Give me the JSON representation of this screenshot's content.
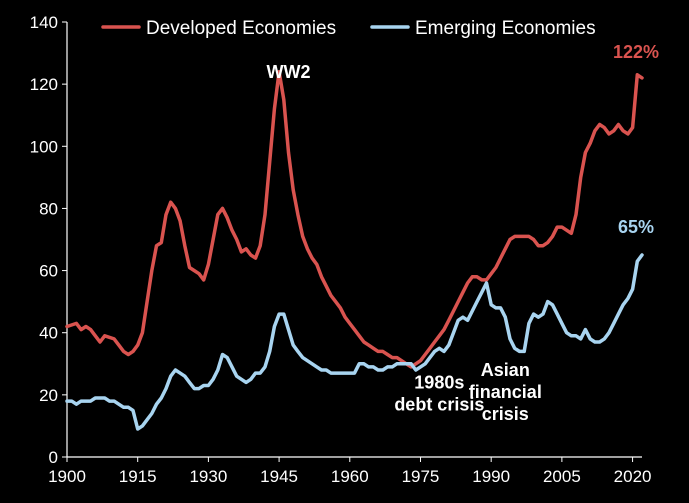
{
  "chart_data": {
    "type": "line",
    "title": "",
    "xlabel": "",
    "ylabel": "",
    "xlim": [
      1900,
      2022
    ],
    "ylim": [
      0,
      140
    ],
    "x_ticks": [
      1900,
      1915,
      1930,
      1945,
      1960,
      1975,
      1990,
      2005,
      2020
    ],
    "y_ticks": [
      0,
      20,
      40,
      60,
      80,
      100,
      120,
      140
    ],
    "x_tick_labels": [
      "1900",
      "1915",
      "1930",
      "1945",
      "1960",
      "1975",
      "1990",
      "2005",
      "2020"
    ],
    "y_tick_labels": [
      "0",
      "20",
      "40",
      "60",
      "80",
      "100",
      "120",
      "140"
    ],
    "grid": false,
    "legend_position": "top",
    "series": [
      {
        "name": "Developed Economies",
        "color": "#d9534f",
        "end_label": "122%",
        "points": [
          [
            1900,
            42
          ],
          [
            1902,
            43
          ],
          [
            1903,
            41
          ],
          [
            1904,
            42
          ],
          [
            1905,
            41
          ],
          [
            1906,
            39
          ],
          [
            1907,
            37
          ],
          [
            1908,
            39
          ],
          [
            1910,
            38
          ],
          [
            1911,
            36
          ],
          [
            1912,
            34
          ],
          [
            1913,
            33
          ],
          [
            1914,
            34
          ],
          [
            1915,
            36
          ],
          [
            1916,
            40
          ],
          [
            1917,
            50
          ],
          [
            1918,
            60
          ],
          [
            1919,
            68
          ],
          [
            1920,
            69
          ],
          [
            1921,
            78
          ],
          [
            1922,
            82
          ],
          [
            1923,
            80
          ],
          [
            1924,
            76
          ],
          [
            1925,
            68
          ],
          [
            1926,
            61
          ],
          [
            1927,
            60
          ],
          [
            1928,
            59
          ],
          [
            1929,
            57
          ],
          [
            1930,
            62
          ],
          [
            1931,
            70
          ],
          [
            1932,
            78
          ],
          [
            1933,
            80
          ],
          [
            1934,
            77
          ],
          [
            1935,
            73
          ],
          [
            1936,
            70
          ],
          [
            1937,
            66
          ],
          [
            1938,
            67
          ],
          [
            1939,
            65
          ],
          [
            1940,
            64
          ],
          [
            1941,
            68
          ],
          [
            1942,
            78
          ],
          [
            1943,
            95
          ],
          [
            1944,
            112
          ],
          [
            1945,
            124
          ],
          [
            1946,
            115
          ],
          [
            1947,
            98
          ],
          [
            1948,
            86
          ],
          [
            1949,
            78
          ],
          [
            1950,
            71
          ],
          [
            1951,
            67
          ],
          [
            1952,
            64
          ],
          [
            1953,
            62
          ],
          [
            1954,
            58
          ],
          [
            1955,
            55
          ],
          [
            1956,
            52
          ],
          [
            1957,
            50
          ],
          [
            1958,
            48
          ],
          [
            1959,
            45
          ],
          [
            1960,
            43
          ],
          [
            1961,
            41
          ],
          [
            1962,
            39
          ],
          [
            1963,
            37
          ],
          [
            1964,
            36
          ],
          [
            1965,
            35
          ],
          [
            1966,
            34
          ],
          [
            1967,
            34
          ],
          [
            1968,
            33
          ],
          [
            1969,
            32
          ],
          [
            1970,
            32
          ],
          [
            1971,
            31
          ],
          [
            1972,
            30
          ],
          [
            1973,
            29
          ],
          [
            1974,
            30
          ],
          [
            1975,
            31
          ],
          [
            1976,
            33
          ],
          [
            1977,
            35
          ],
          [
            1978,
            37
          ],
          [
            1979,
            39
          ],
          [
            1980,
            41
          ],
          [
            1981,
            44
          ],
          [
            1982,
            47
          ],
          [
            1983,
            50
          ],
          [
            1984,
            53
          ],
          [
            1985,
            56
          ],
          [
            1986,
            58
          ],
          [
            1987,
            58
          ],
          [
            1988,
            57
          ],
          [
            1989,
            57
          ],
          [
            1990,
            59
          ],
          [
            1991,
            61
          ],
          [
            1992,
            64
          ],
          [
            1993,
            67
          ],
          [
            1994,
            70
          ],
          [
            1995,
            71
          ],
          [
            1996,
            71
          ],
          [
            1997,
            71
          ],
          [
            1998,
            71
          ],
          [
            1999,
            70
          ],
          [
            2000,
            68
          ],
          [
            2001,
            68
          ],
          [
            2002,
            69
          ],
          [
            2003,
            71
          ],
          [
            2004,
            74
          ],
          [
            2005,
            74
          ],
          [
            2006,
            73
          ],
          [
            2007,
            72
          ],
          [
            2008,
            78
          ],
          [
            2009,
            90
          ],
          [
            2010,
            98
          ],
          [
            2011,
            101
          ],
          [
            2012,
            105
          ],
          [
            2013,
            107
          ],
          [
            2014,
            106
          ],
          [
            2015,
            104
          ],
          [
            2016,
            105
          ],
          [
            2017,
            107
          ],
          [
            2018,
            105
          ],
          [
            2019,
            104
          ],
          [
            2020,
            106
          ],
          [
            2021,
            123
          ],
          [
            2022,
            122
          ]
        ]
      },
      {
        "name": "Emerging Economies",
        "color": "#a8d4f0",
        "end_label": "65%",
        "points": [
          [
            1900,
            18
          ],
          [
            1901,
            18
          ],
          [
            1902,
            17
          ],
          [
            1903,
            18
          ],
          [
            1904,
            18
          ],
          [
            1905,
            18
          ],
          [
            1906,
            19
          ],
          [
            1907,
            19
          ],
          [
            1908,
            19
          ],
          [
            1909,
            18
          ],
          [
            1910,
            18
          ],
          [
            1911,
            17
          ],
          [
            1912,
            16
          ],
          [
            1913,
            16
          ],
          [
            1914,
            15
          ],
          [
            1915,
            9
          ],
          [
            1916,
            10
          ],
          [
            1917,
            12
          ],
          [
            1918,
            14
          ],
          [
            1919,
            17
          ],
          [
            1920,
            19
          ],
          [
            1921,
            22
          ],
          [
            1922,
            26
          ],
          [
            1923,
            28
          ],
          [
            1924,
            27
          ],
          [
            1925,
            26
          ],
          [
            1926,
            24
          ],
          [
            1927,
            22
          ],
          [
            1928,
            22
          ],
          [
            1929,
            23
          ],
          [
            1930,
            23
          ],
          [
            1931,
            25
          ],
          [
            1932,
            28
          ],
          [
            1933,
            33
          ],
          [
            1934,
            32
          ],
          [
            1935,
            29
          ],
          [
            1936,
            26
          ],
          [
            1937,
            25
          ],
          [
            1938,
            24
          ],
          [
            1939,
            25
          ],
          [
            1940,
            27
          ],
          [
            1941,
            27
          ],
          [
            1942,
            29
          ],
          [
            1943,
            34
          ],
          [
            1944,
            42
          ],
          [
            1945,
            46
          ],
          [
            1946,
            46
          ],
          [
            1947,
            41
          ],
          [
            1948,
            36
          ],
          [
            1949,
            34
          ],
          [
            1950,
            32
          ],
          [
            1951,
            31
          ],
          [
            1952,
            30
          ],
          [
            1953,
            29
          ],
          [
            1954,
            28
          ],
          [
            1955,
            28
          ],
          [
            1956,
            27
          ],
          [
            1957,
            27
          ],
          [
            1958,
            27
          ],
          [
            1959,
            27
          ],
          [
            1960,
            27
          ],
          [
            1961,
            27
          ],
          [
            1962,
            30
          ],
          [
            1963,
            30
          ],
          [
            1964,
            29
          ],
          [
            1965,
            29
          ],
          [
            1966,
            28
          ],
          [
            1967,
            28
          ],
          [
            1968,
            29
          ],
          [
            1969,
            29
          ],
          [
            1970,
            30
          ],
          [
            1971,
            30
          ],
          [
            1972,
            30
          ],
          [
            1973,
            30
          ],
          [
            1974,
            28
          ],
          [
            1975,
            29
          ],
          [
            1976,
            30
          ],
          [
            1977,
            32
          ],
          [
            1978,
            34
          ],
          [
            1979,
            35
          ],
          [
            1980,
            34
          ],
          [
            1981,
            36
          ],
          [
            1982,
            40
          ],
          [
            1983,
            44
          ],
          [
            1984,
            45
          ],
          [
            1985,
            44
          ],
          [
            1986,
            47
          ],
          [
            1987,
            50
          ],
          [
            1988,
            53
          ],
          [
            1989,
            56
          ],
          [
            1990,
            49
          ],
          [
            1991,
            48
          ],
          [
            1992,
            48
          ],
          [
            1993,
            45
          ],
          [
            1994,
            38
          ],
          [
            1995,
            35
          ],
          [
            1996,
            34
          ],
          [
            1997,
            34
          ],
          [
            1998,
            43
          ],
          [
            1999,
            46
          ],
          [
            2000,
            45
          ],
          [
            2001,
            46
          ],
          [
            2002,
            50
          ],
          [
            2003,
            49
          ],
          [
            2004,
            46
          ],
          [
            2005,
            43
          ],
          [
            2006,
            40
          ],
          [
            2007,
            39
          ],
          [
            2008,
            39
          ],
          [
            2009,
            38
          ],
          [
            2010,
            41
          ],
          [
            2011,
            38
          ],
          [
            2012,
            37
          ],
          [
            2013,
            37
          ],
          [
            2014,
            38
          ],
          [
            2015,
            40
          ],
          [
            2016,
            43
          ],
          [
            2017,
            46
          ],
          [
            2018,
            49
          ],
          [
            2019,
            51
          ],
          [
            2020,
            54
          ],
          [
            2021,
            63
          ],
          [
            2022,
            65
          ]
        ]
      }
    ],
    "annotations": [
      {
        "id": "ww2",
        "lines": [
          "WW2"
        ],
        "x": 1947,
        "y": 122
      },
      {
        "id": "debt-1980s",
        "lines": [
          "1980s",
          "debt crisis"
        ],
        "x": 1979,
        "y": 22
      },
      {
        "id": "asian-crisis",
        "lines": [
          "Asian",
          "financial",
          "crisis"
        ],
        "x": 1993,
        "y": 26
      }
    ]
  }
}
